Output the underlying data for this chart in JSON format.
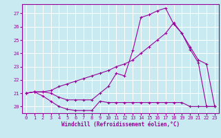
{
  "background_color": "#c8eaf0",
  "grid_color": "#ffffff",
  "line_color": "#990099",
  "marker_color": "#990099",
  "xlabel": "Windchill (Refroidissement éolien,°C)",
  "xlim": [
    -0.5,
    23.5
  ],
  "ylim": [
    19.5,
    27.7
  ],
  "xticks": [
    0,
    1,
    2,
    3,
    4,
    5,
    6,
    7,
    8,
    9,
    10,
    11,
    12,
    13,
    14,
    15,
    16,
    17,
    18,
    19,
    20,
    21,
    22,
    23
  ],
  "yticks": [
    20,
    21,
    22,
    23,
    24,
    25,
    26,
    27
  ],
  "line1_x": [
    0,
    1,
    2,
    3,
    4,
    5,
    6,
    7,
    8,
    9,
    10,
    11,
    12,
    13,
    14,
    15,
    16,
    17,
    18,
    19,
    20,
    21,
    22,
    23
  ],
  "line1_y": [
    21.0,
    21.1,
    20.8,
    20.4,
    20.0,
    19.8,
    19.7,
    19.7,
    19.7,
    20.4,
    20.3,
    20.3,
    20.3,
    20.3,
    20.3,
    20.3,
    20.3,
    20.3,
    20.3,
    20.3,
    20.0,
    20.0,
    20.0,
    20.0
  ],
  "line2_x": [
    0,
    1,
    2,
    3,
    4,
    5,
    6,
    7,
    8,
    9,
    10,
    11,
    12,
    13,
    14,
    15,
    16,
    17,
    18,
    19,
    20,
    21,
    22,
    23
  ],
  "line2_y": [
    21.0,
    21.1,
    21.1,
    21.0,
    20.7,
    20.5,
    20.5,
    20.5,
    20.5,
    21.0,
    21.5,
    22.5,
    22.3,
    24.2,
    26.7,
    26.9,
    27.2,
    27.4,
    26.2,
    25.5,
    24.3,
    23.3,
    20.0,
    20.0
  ],
  "line3_x": [
    0,
    1,
    2,
    3,
    4,
    5,
    6,
    7,
    8,
    9,
    10,
    11,
    12,
    13,
    14,
    15,
    16,
    17,
    18,
    19,
    20,
    21,
    22,
    23
  ],
  "line3_y": [
    21.0,
    21.1,
    21.1,
    21.2,
    21.5,
    21.7,
    21.9,
    22.1,
    22.3,
    22.5,
    22.7,
    23.0,
    23.2,
    23.5,
    24.0,
    24.5,
    25.0,
    25.5,
    26.3,
    25.5,
    24.5,
    23.5,
    23.2,
    20.0
  ],
  "tick_fontsize": 5.0,
  "xlabel_fontsize": 5.5,
  "linewidth": 0.8,
  "markersize": 2.5
}
